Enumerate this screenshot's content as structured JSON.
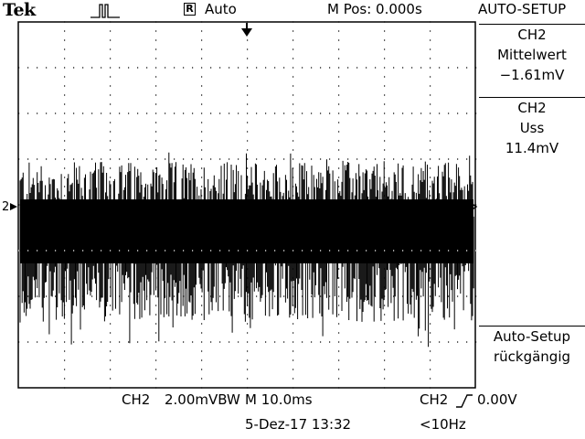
{
  "header": {
    "brand": "Tek",
    "trigger_status_icon": "pulse-icon",
    "acq_icon_letter": "R",
    "acq_mode": "Auto",
    "horizontal_position": "M Pos: 0.000s",
    "menu_title": "AUTO-SETUP"
  },
  "side_menu": {
    "measure1": {
      "channel": "CH2",
      "type": "Mittelwert",
      "value": "−1.61mV"
    },
    "measure2": {
      "channel": "CH2",
      "type": "Uss",
      "value": "11.4mV"
    },
    "undo": {
      "line1": "Auto-Setup",
      "line2": "rückgängig"
    }
  },
  "graticule": {
    "channel_marker": "2",
    "trigger_position_icon": "arrow-down-icon",
    "trigger_level_icon": "arrow-left-icon"
  },
  "status_bar": {
    "channel_label": "CH2",
    "vertical_scale": "2.00mVBW",
    "timebase": "M 10.0ms",
    "trigger_source": "CH2",
    "trigger_slope_icon": "rising-edge-icon",
    "trigger_level": "0.00V",
    "datetime": "5-Dez-17 13:32",
    "trigger_frequency": "<10Hz"
  },
  "colors": {
    "background": "#ffffff",
    "foreground": "#000000"
  }
}
